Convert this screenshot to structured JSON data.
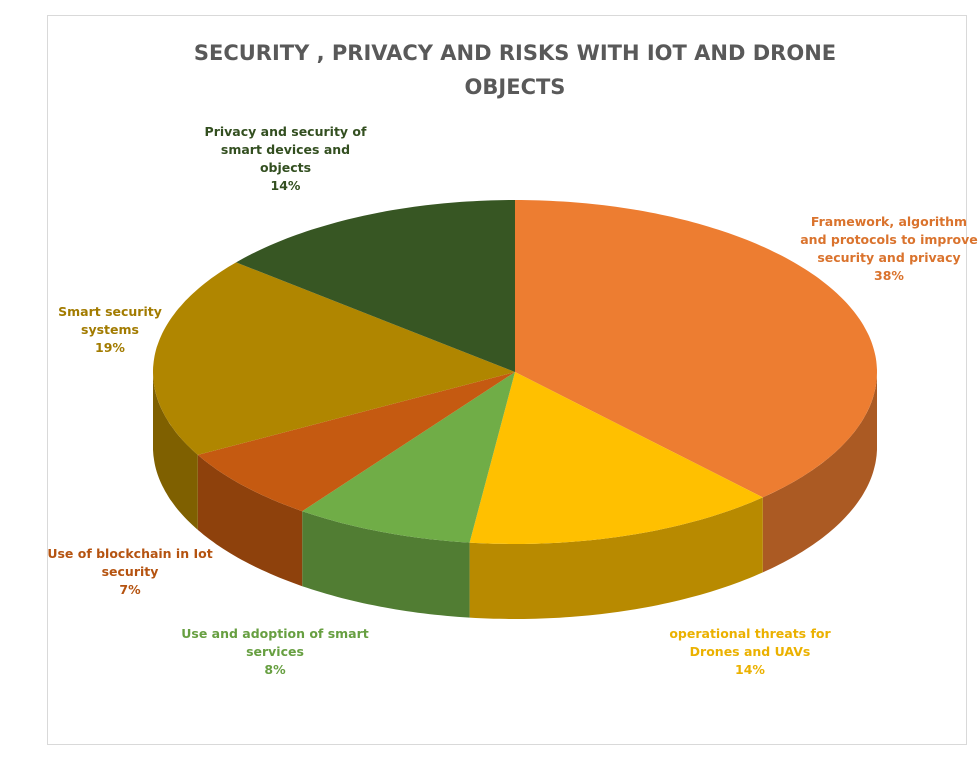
{
  "chart_data": {
    "type": "pie",
    "title": "SECURITY , PRIVACY AND RISKS WITH IOT AND DRONE OBJECTS",
    "categories": [
      "Framework, algorithm and protocols to improve security and privacy",
      "operational threats for Drones and UAVs",
      "Use and adoption of smart services",
      "Use of blockchain in Iot security",
      "Smart security systems",
      "Privacy and security of smart devices and objects"
    ],
    "values": [
      38,
      14,
      8,
      7,
      19,
      14
    ],
    "value_labels": [
      "38%",
      "14%",
      "8%",
      "7%",
      "19%",
      "14%"
    ],
    "colors": [
      "#ED7D31",
      "#FFC000",
      "#70AD47",
      "#C55A11",
      "#B08600",
      "#375623"
    ]
  }
}
